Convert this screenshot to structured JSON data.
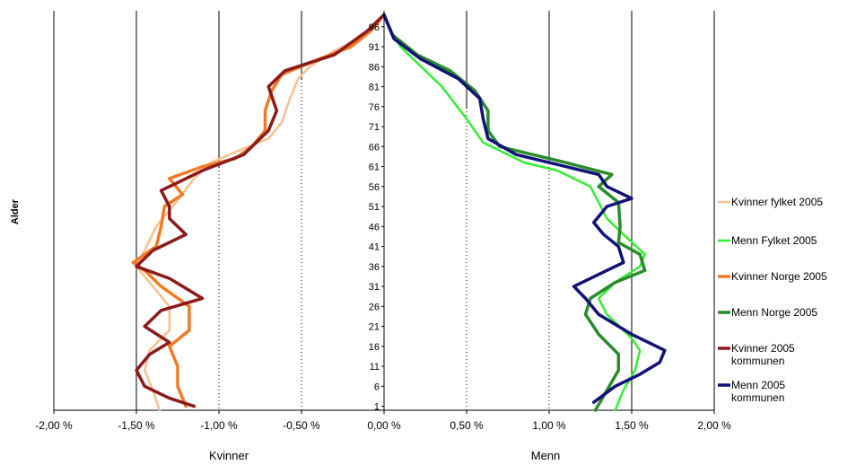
{
  "chart_data": {
    "type": "line",
    "title": "",
    "ylabel": "Alder",
    "xlabel_left": "Kvinner",
    "xlabel_right": "Menn",
    "xlim": [
      -2.0,
      2.0
    ],
    "ylim": [
      0,
      100
    ],
    "x_ticks": [
      -2.0,
      -1.5,
      -1.0,
      -0.5,
      0.0,
      0.5,
      1.0,
      1.5,
      2.0
    ],
    "x_tick_labels": [
      "-2,00 %",
      "-1,50 %",
      "-1,00 %",
      "-0,50 %",
      "0,00 %",
      "0,50 %",
      "1,00 %",
      "1,50 %",
      "2,00 %"
    ],
    "age_ticks": [
      1,
      6,
      11,
      16,
      21,
      26,
      31,
      36,
      41,
      46,
      51,
      56,
      61,
      66,
      71,
      76,
      81,
      86,
      91,
      96
    ],
    "grid": "vertical",
    "legend_position": "right",
    "series": [
      {
        "name": "Kvinner fylket 2005",
        "color": "#FAC090",
        "width": 2,
        "points": [
          [
            -1.36,
            0
          ],
          [
            -1.4,
            5
          ],
          [
            -1.45,
            10
          ],
          [
            -1.42,
            15
          ],
          [
            -1.3,
            20
          ],
          [
            -1.3,
            26
          ],
          [
            -1.4,
            31
          ],
          [
            -1.5,
            36
          ],
          [
            -1.45,
            40
          ],
          [
            -1.38,
            46
          ],
          [
            -1.28,
            51
          ],
          [
            -1.15,
            58
          ],
          [
            -1.05,
            62
          ],
          [
            -0.88,
            65
          ],
          [
            -0.7,
            68
          ],
          [
            -0.62,
            72
          ],
          [
            -0.57,
            78
          ],
          [
            -0.52,
            83
          ],
          [
            -0.45,
            86
          ],
          [
            -0.3,
            90
          ],
          [
            -0.15,
            93
          ],
          [
            -0.05,
            96
          ],
          [
            0,
            99
          ]
        ]
      },
      {
        "name": "Menn Fylket 2005",
        "color": "#33EE33",
        "width": 2,
        "points": [
          [
            1.4,
            0
          ],
          [
            1.45,
            5
          ],
          [
            1.52,
            10
          ],
          [
            1.55,
            15
          ],
          [
            1.5,
            18
          ],
          [
            1.35,
            24
          ],
          [
            1.3,
            28
          ],
          [
            1.4,
            32
          ],
          [
            1.55,
            36
          ],
          [
            1.58,
            39
          ],
          [
            1.45,
            44
          ],
          [
            1.35,
            48
          ],
          [
            1.3,
            52
          ],
          [
            1.25,
            56
          ],
          [
            1.05,
            60
          ],
          [
            0.85,
            62
          ],
          [
            0.6,
            67
          ],
          [
            0.5,
            73
          ],
          [
            0.35,
            81
          ],
          [
            0.2,
            87
          ],
          [
            0.1,
            91
          ],
          [
            0.04,
            95
          ],
          [
            0,
            99
          ]
        ]
      },
      {
        "name": "Kvinner Norge 2005",
        "color": "#F27A23",
        "width": 3,
        "points": [
          [
            -1.2,
            1
          ],
          [
            -1.25,
            6
          ],
          [
            -1.25,
            11
          ],
          [
            -1.3,
            16
          ],
          [
            -1.18,
            20
          ],
          [
            -1.18,
            26
          ],
          [
            -1.35,
            31
          ],
          [
            -1.45,
            35
          ],
          [
            -1.52,
            37
          ],
          [
            -1.38,
            41
          ],
          [
            -1.35,
            46
          ],
          [
            -1.33,
            51
          ],
          [
            -1.22,
            54
          ],
          [
            -1.3,
            58
          ],
          [
            -1.1,
            61
          ],
          [
            -0.9,
            63
          ],
          [
            -0.8,
            66
          ],
          [
            -0.72,
            70
          ],
          [
            -0.72,
            75
          ],
          [
            -0.68,
            80
          ],
          [
            -0.62,
            84
          ],
          [
            -0.45,
            87
          ],
          [
            -0.2,
            91
          ],
          [
            -0.08,
            95
          ],
          [
            0,
            99
          ]
        ]
      },
      {
        "name": "Menn Norge 2005",
        "color": "#2A8C2A",
        "width": 3,
        "points": [
          [
            1.28,
            0
          ],
          [
            1.35,
            5
          ],
          [
            1.42,
            10
          ],
          [
            1.42,
            14
          ],
          [
            1.3,
            19
          ],
          [
            1.22,
            24
          ],
          [
            1.25,
            28
          ],
          [
            1.4,
            32
          ],
          [
            1.58,
            35
          ],
          [
            1.55,
            39
          ],
          [
            1.42,
            42
          ],
          [
            1.43,
            46
          ],
          [
            1.42,
            52
          ],
          [
            1.3,
            56
          ],
          [
            1.38,
            59
          ],
          [
            1.1,
            62
          ],
          [
            0.9,
            64
          ],
          [
            0.7,
            66
          ],
          [
            0.63,
            70
          ],
          [
            0.63,
            75
          ],
          [
            0.55,
            80
          ],
          [
            0.4,
            85
          ],
          [
            0.2,
            89
          ],
          [
            0.05,
            94
          ],
          [
            0,
            99
          ]
        ]
      },
      {
        "name": "Kvinner 2005 kommunen",
        "color": "#8B1A1A",
        "width": 3,
        "points": [
          [
            -1.15,
            1
          ],
          [
            -1.3,
            3
          ],
          [
            -1.45,
            6
          ],
          [
            -1.5,
            10
          ],
          [
            -1.42,
            14
          ],
          [
            -1.3,
            17
          ],
          [
            -1.45,
            21
          ],
          [
            -1.35,
            25
          ],
          [
            -1.1,
            28
          ],
          [
            -1.3,
            33
          ],
          [
            -1.5,
            36
          ],
          [
            -1.4,
            40
          ],
          [
            -1.2,
            44
          ],
          [
            -1.3,
            48
          ],
          [
            -1.3,
            51
          ],
          [
            -1.35,
            55
          ],
          [
            -1.25,
            57
          ],
          [
            -1.1,
            60
          ],
          [
            -0.85,
            64
          ],
          [
            -0.7,
            70
          ],
          [
            -0.65,
            75
          ],
          [
            -0.7,
            81
          ],
          [
            -0.6,
            85
          ],
          [
            -0.3,
            89
          ],
          [
            -0.1,
            95
          ],
          [
            0,
            99
          ]
        ]
      },
      {
        "name": "Menn 2005 kommunen",
        "color": "#111177",
        "width": 3,
        "points": [
          [
            1.27,
            2
          ],
          [
            1.4,
            6
          ],
          [
            1.55,
            9
          ],
          [
            1.67,
            12
          ],
          [
            1.7,
            15
          ],
          [
            1.5,
            19
          ],
          [
            1.3,
            24
          ],
          [
            1.22,
            28
          ],
          [
            1.15,
            31
          ],
          [
            1.3,
            34
          ],
          [
            1.45,
            37
          ],
          [
            1.42,
            41
          ],
          [
            1.33,
            44
          ],
          [
            1.27,
            47
          ],
          [
            1.35,
            51
          ],
          [
            1.5,
            53
          ],
          [
            1.35,
            56
          ],
          [
            1.3,
            59
          ],
          [
            1.0,
            62
          ],
          [
            0.8,
            64
          ],
          [
            0.63,
            68
          ],
          [
            0.6,
            73
          ],
          [
            0.58,
            78
          ],
          [
            0.45,
            83
          ],
          [
            0.22,
            88
          ],
          [
            0.06,
            93
          ],
          [
            0,
            99
          ]
        ]
      }
    ]
  },
  "legend": [
    {
      "label_lines": [
        "Kvinner fylket 2005"
      ],
      "color": "#FAC090",
      "width": 2
    },
    {
      "label_lines": [
        "Menn Fylket 2005"
      ],
      "color": "#33EE33",
      "width": 2
    },
    {
      "label_lines": [
        "Kvinner Norge 2005"
      ],
      "color": "#F27A23",
      "width": 3
    },
    {
      "label_lines": [
        "Menn Norge 2005"
      ],
      "color": "#2A8C2A",
      "width": 3
    },
    {
      "label_lines": [
        "Kvinner 2005",
        "kommunen"
      ],
      "color": "#8B1A1A",
      "width": 3
    },
    {
      "label_lines": [
        "Menn 2005",
        "kommunen"
      ],
      "color": "#111177",
      "width": 3
    }
  ]
}
